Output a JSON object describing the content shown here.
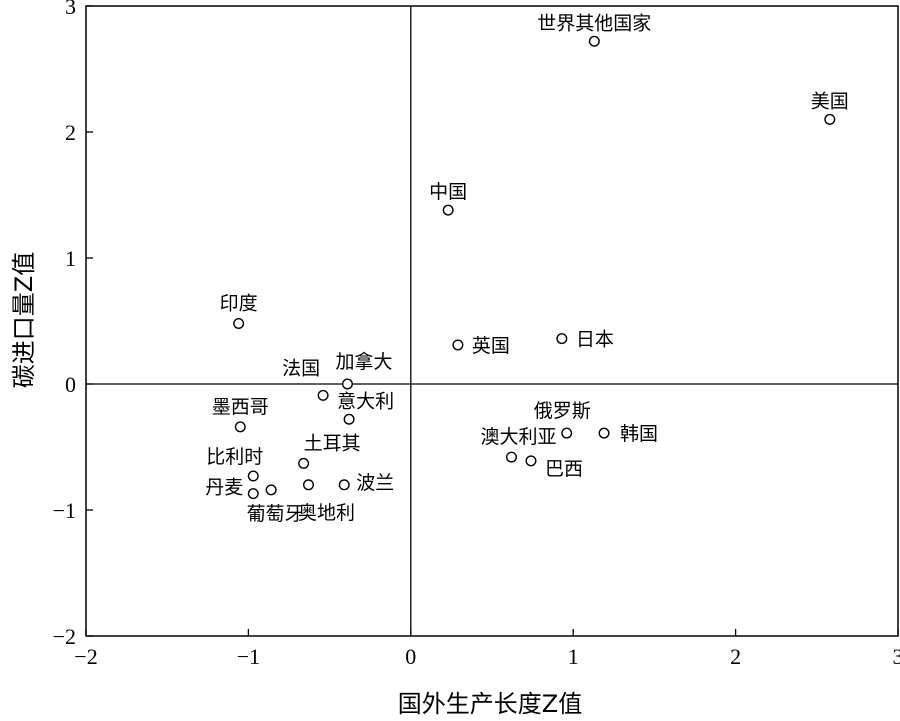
{
  "chart_data": {
    "type": "scatter",
    "xlabel": "国外生产长度Z值",
    "ylabel": "碳进口量Z值",
    "xlim": [
      -2,
      3
    ],
    "ylim": [
      -2,
      3
    ],
    "xticks": [
      -2,
      -1,
      0,
      1,
      2,
      3
    ],
    "yticks": [
      -2,
      -1,
      0,
      1,
      2,
      3
    ],
    "xtick_labels": [
      "−2",
      "−1",
      "0",
      "1",
      "2",
      "3"
    ],
    "ytick_labels": [
      "−2",
      "−1",
      "0",
      "1",
      "2",
      "3"
    ],
    "reference_lines": {
      "x": 0,
      "y": 0
    },
    "grid": false,
    "points": [
      {
        "label": "世界其他国家",
        "x": 1.13,
        "y": 2.72
      },
      {
        "label": "美国",
        "x": 2.58,
        "y": 2.1
      },
      {
        "label": "中国",
        "x": 0.23,
        "y": 1.38
      },
      {
        "label": "印度",
        "x": -1.06,
        "y": 0.48
      },
      {
        "label": "英国",
        "x": 0.29,
        "y": 0.31
      },
      {
        "label": "日本",
        "x": 0.93,
        "y": 0.36
      },
      {
        "label": "加拿大",
        "x": -0.39,
        "y": 0.0
      },
      {
        "label": "法国",
        "x": -0.54,
        "y": -0.09
      },
      {
        "label": "意大利",
        "x": -0.38,
        "y": -0.28
      },
      {
        "label": "墨西哥",
        "x": -1.05,
        "y": -0.34
      },
      {
        "label": "俄罗斯",
        "x": 0.96,
        "y": -0.39
      },
      {
        "label": "韩国",
        "x": 1.19,
        "y": -0.39
      },
      {
        "label": "澳大利亚",
        "x": 0.62,
        "y": -0.58
      },
      {
        "label": "巴西",
        "x": 0.74,
        "y": -0.61
      },
      {
        "label": "土耳其",
        "x": -0.66,
        "y": -0.63
      },
      {
        "label": "比利时",
        "x": -0.97,
        "y": -0.73
      },
      {
        "label": "丹麦",
        "x": -0.97,
        "y": -0.87
      },
      {
        "label": "葡萄牙",
        "x": -0.86,
        "y": -0.84
      },
      {
        "label": "奥地利",
        "x": -0.63,
        "y": -0.8
      },
      {
        "label": "波兰",
        "x": -0.41,
        "y": -0.8
      }
    ]
  }
}
